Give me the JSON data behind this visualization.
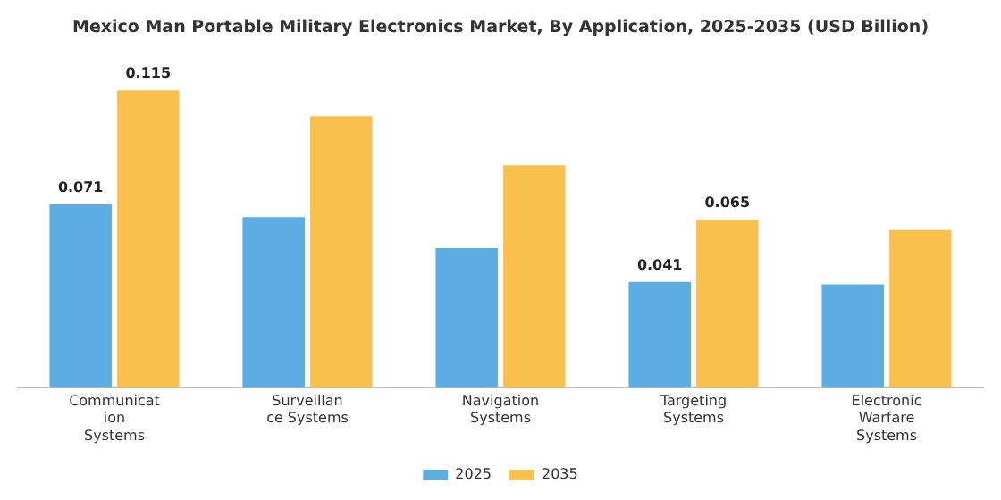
{
  "chart_data": {
    "type": "bar",
    "title": "Mexico Man Portable Military Electronics Market, By Application, 2025-2035 (USD Billion)",
    "categories": [
      "Communicat\nion\nSystems",
      "Surveillan\nce Systems",
      "Navigation\nSystems",
      "Targeting\nSystems",
      "Electronic\nWarfare\nSystems"
    ],
    "series": [
      {
        "name": "2025",
        "color": "#5dade2",
        "values": [
          0.071,
          0.066,
          0.054,
          0.041,
          0.04
        ],
        "value_labels": [
          "0.071",
          null,
          null,
          "0.041",
          null
        ]
      },
      {
        "name": "2035",
        "color": "#f9c04b",
        "values": [
          0.115,
          0.105,
          0.086,
          0.065,
          0.061
        ],
        "value_labels": [
          "0.115",
          null,
          null,
          "0.065",
          null
        ]
      }
    ],
    "legend": "bottom",
    "grid": false
  }
}
